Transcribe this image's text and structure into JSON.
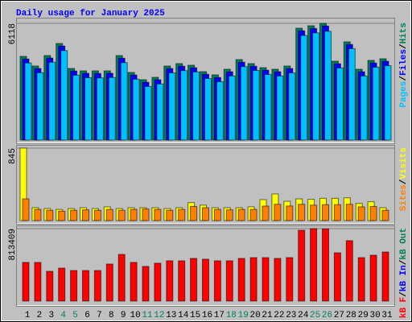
{
  "chart_data": [
    {
      "type": "bar",
      "title": "Daily usage for January 2025",
      "ylim": [
        0,
        6118
      ],
      "yticks": [
        6118
      ],
      "legend_separator": "/",
      "legend": [
        {
          "name": "Pages",
          "color": "#00c0ff"
        },
        {
          "name": "Files",
          "color": "#0000ff"
        },
        {
          "name": "Hits",
          "color": "#00805c"
        }
      ],
      "series": [
        {
          "color": "#00805c",
          "values": [
            4388,
            3882,
            4430,
            5063,
            3755,
            3629,
            3629,
            3629,
            4430,
            3544,
            3164,
            3291,
            3882,
            4008,
            3924,
            3586,
            3418,
            3713,
            4219,
            4008,
            3797,
            3713,
            3882,
            5865,
            5991,
            6118,
            4135,
            5148,
            3713,
            4177,
            4262
          ]
        },
        {
          "color": "#0000ff",
          "values": [
            4250,
            3750,
            4300,
            4930,
            3620,
            3500,
            3490,
            3500,
            4290,
            3410,
            3030,
            3160,
            3750,
            3870,
            3790,
            3450,
            3280,
            3580,
            4080,
            3870,
            3660,
            3580,
            3750,
            5730,
            5850,
            5980,
            4000,
            5010,
            3580,
            4040,
            4130
          ]
        },
        {
          "color": "#00c0ff",
          "values": [
            4040,
            3530,
            4080,
            4690,
            3400,
            3270,
            3260,
            3280,
            4060,
            3190,
            2810,
            2940,
            3520,
            3640,
            3570,
            3230,
            3060,
            3360,
            3850,
            3650,
            3440,
            3360,
            3520,
            5480,
            5620,
            5700,
            3780,
            4790,
            3360,
            3820,
            3900
          ]
        }
      ]
    },
    {
      "type": "bar",
      "ylim": [
        0,
        845
      ],
      "yticks": [
        845
      ],
      "legend": [
        {
          "name": "Sites",
          "color": "#ff8000"
        },
        {
          "name": "Visits",
          "color": "#ffff00"
        }
      ],
      "series": [
        {
          "color": "#ffff00",
          "values": [
            845,
            150,
            140,
            130,
            140,
            150,
            140,
            160,
            140,
            150,
            150,
            150,
            140,
            150,
            210,
            180,
            150,
            150,
            150,
            160,
            244,
            310,
            225,
            253,
            248,
            260,
            260,
            265,
            200,
            220,
            150
          ]
        },
        {
          "color": "#ff8000",
          "values": [
            253,
            130,
            120,
            110,
            120,
            125,
            120,
            130,
            120,
            130,
            135,
            130,
            120,
            130,
            165,
            150,
            130,
            125,
            130,
            130,
            169,
            190,
            170,
            190,
            180,
            185,
            185,
            190,
            160,
            165,
            120
          ]
        }
      ]
    },
    {
      "type": "bar",
      "ylim": [
        0,
        813409
      ],
      "yticks": [
        813409
      ],
      "legend": [
        {
          "name": "kB F",
          "color": "#ff0000"
        },
        {
          "name": "kB In",
          "color": "#0000ff"
        },
        {
          "name": "kB Out",
          "color": "#00805c"
        }
      ],
      "categories": [
        "1",
        "2",
        "3",
        "4",
        "5",
        "6",
        "7",
        "8",
        "9",
        "10",
        "11",
        "12",
        "13",
        "14",
        "15",
        "16",
        "17",
        "18",
        "19",
        "20",
        "21",
        "22",
        "23",
        "24",
        "25",
        "26",
        "27",
        "28",
        "29",
        "30",
        "31"
      ],
      "category_colors": [
        "#000000",
        "#000000",
        "#000000",
        "#00805c",
        "#00805c",
        "#000000",
        "#000000",
        "#000000",
        "#000000",
        "#000000",
        "#00805c",
        "#00805c",
        "#000000",
        "#000000",
        "#000000",
        "#000000",
        "#000000",
        "#00805c",
        "#00805c",
        "#000000",
        "#000000",
        "#000000",
        "#000000",
        "#000000",
        "#00805c",
        "#00805c",
        "#000000",
        "#000000",
        "#000000",
        "#000000",
        "#000000"
      ],
      "series": [
        {
          "color": "#ff0000",
          "values": [
            434000,
            434000,
            334000,
            370000,
            343000,
            343000,
            343000,
            416000,
            524000,
            434000,
            389000,
            425000,
            452000,
            452000,
            479000,
            470000,
            452000,
            452000,
            479000,
            488000,
            488000,
            479000,
            488000,
            795000,
            813409,
            810000,
            542000,
            678000,
            488000,
            515000,
            551000
          ]
        }
      ]
    }
  ]
}
